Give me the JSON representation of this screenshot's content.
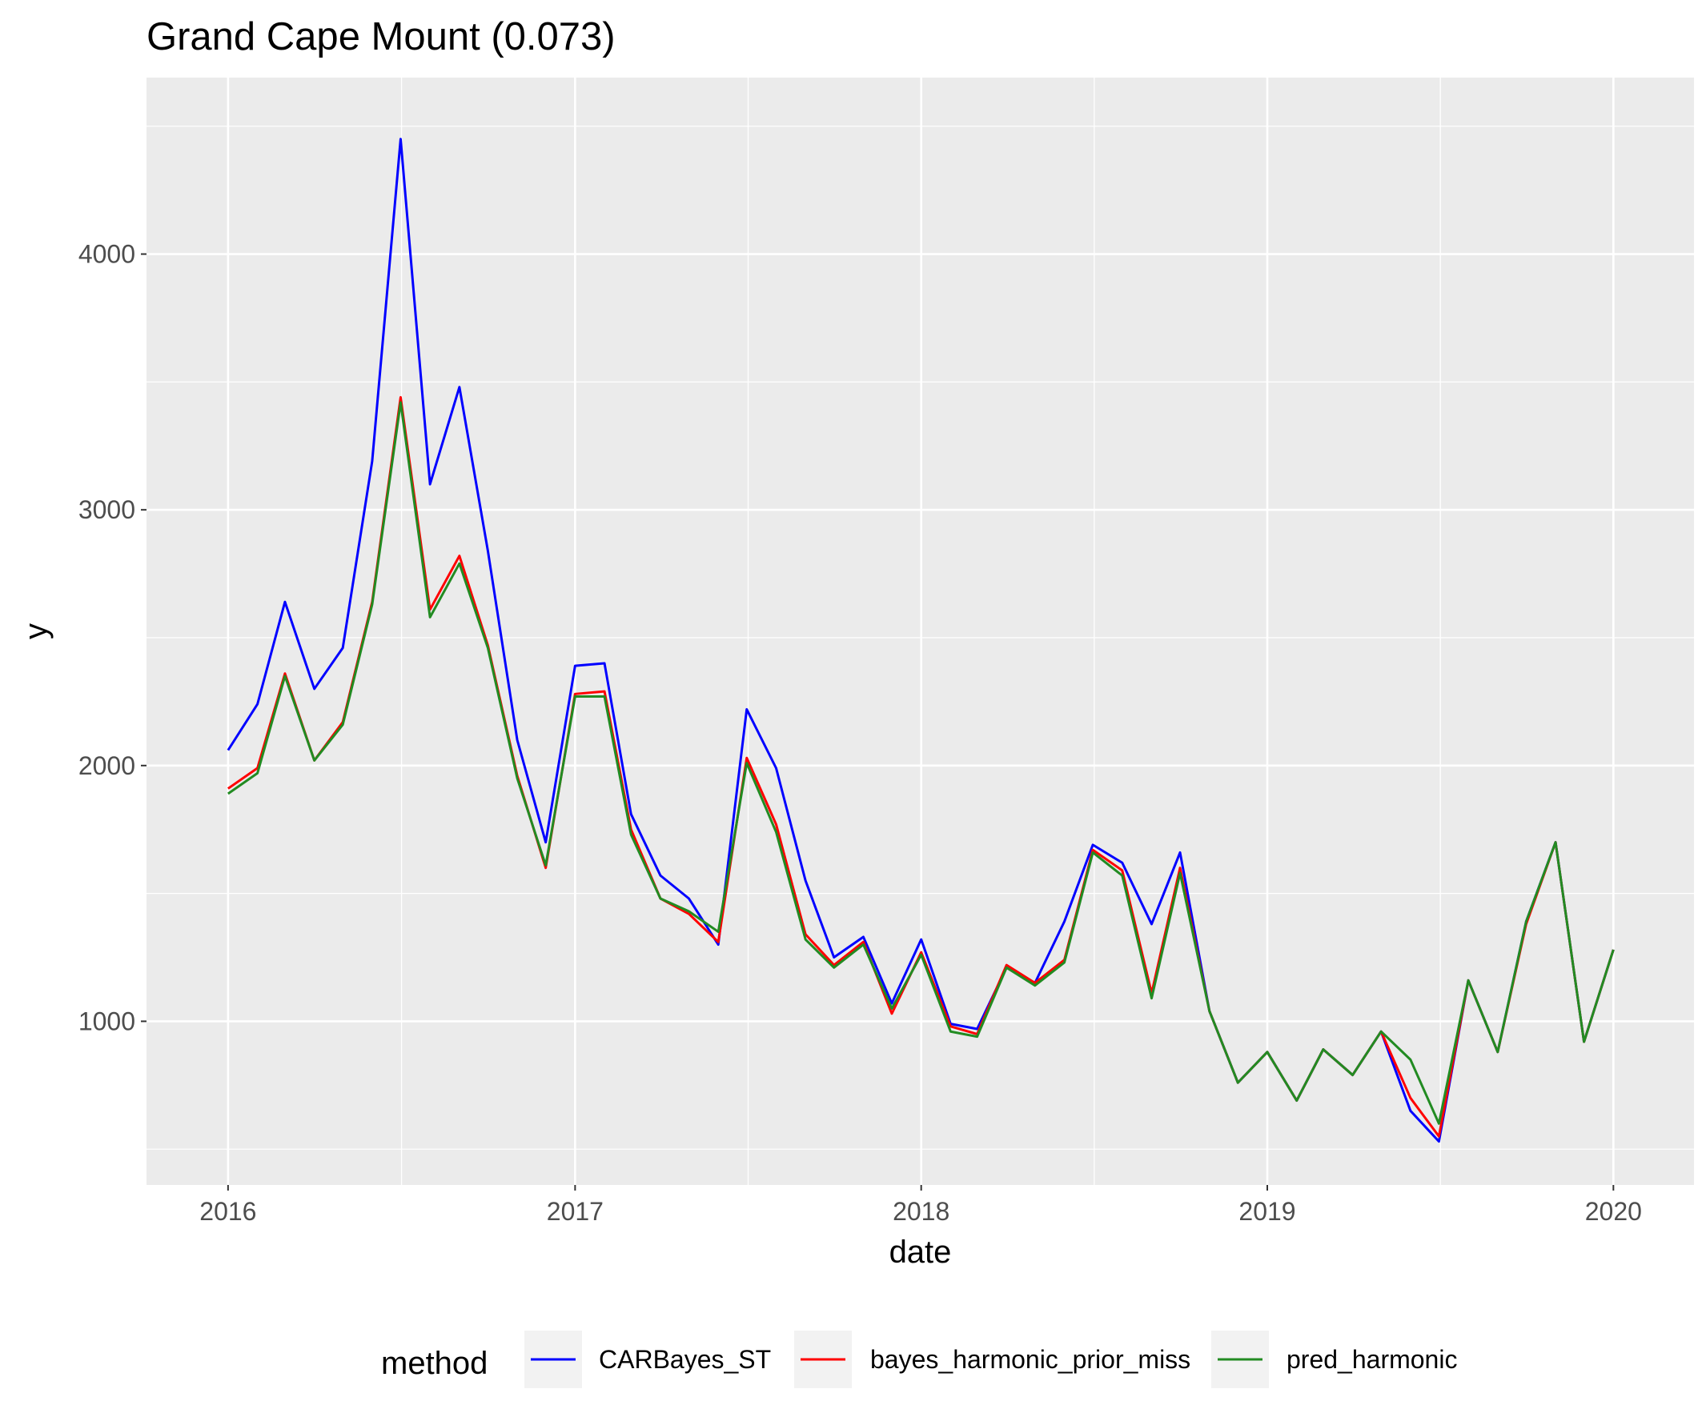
{
  "chart_data": {
    "type": "line",
    "title": "Grand Cape Mount (0.073)",
    "xlabel": "date",
    "ylabel": "y",
    "x_ticks": [
      "2016",
      "2017",
      "2018",
      "2019",
      "2020"
    ],
    "y_ticks": [
      "1000",
      "2000",
      "3000",
      "4000"
    ],
    "xlim": [
      "2015-10-07",
      "2020-03-26"
    ],
    "ylim": [
      360,
      4690
    ],
    "grid": true,
    "legend_title": "method",
    "legend_position": "bottom",
    "x": [
      "2016-01",
      "2016-02",
      "2016-03",
      "2016-04",
      "2016-05",
      "2016-06",
      "2016-07",
      "2016-08",
      "2016-09",
      "2016-10",
      "2016-11",
      "2016-12",
      "2017-01",
      "2017-02",
      "2017-03",
      "2017-04",
      "2017-05",
      "2017-06",
      "2017-07",
      "2017-08",
      "2017-09",
      "2017-10",
      "2017-11",
      "2017-12",
      "2018-01",
      "2018-02",
      "2018-03",
      "2018-04",
      "2018-05",
      "2018-06",
      "2018-07",
      "2018-08",
      "2018-09",
      "2018-10",
      "2018-11",
      "2018-12",
      "2019-01",
      "2019-02",
      "2019-03",
      "2019-04",
      "2019-05",
      "2019-06",
      "2019-07",
      "2019-08",
      "2019-09",
      "2019-10",
      "2019-11",
      "2019-12",
      "2020-01"
    ],
    "series": [
      {
        "name": "CARBayes_ST",
        "color": "#0000ff",
        "values": [
          2060,
          2240,
          2640,
          2300,
          2460,
          3190,
          4450,
          3100,
          3480,
          2840,
          2100,
          1700,
          2390,
          2400,
          1810,
          1570,
          1480,
          1300,
          2220,
          1990,
          1550,
          1250,
          1330,
          1070,
          1320,
          990,
          970,
          1210,
          1150,
          1390,
          1690,
          1620,
          1380,
          1660,
          1040,
          760,
          880,
          690,
          890,
          790,
          960,
          650,
          530,
          1160,
          880,
          1390,
          1700,
          920,
          1280
        ]
      },
      {
        "name": "bayes_harmonic_prior_miss",
        "color": "#ff0000",
        "values": [
          1910,
          1990,
          2360,
          2020,
          2170,
          2640,
          3440,
          2610,
          2820,
          2470,
          1960,
          1600,
          2280,
          2290,
          1750,
          1480,
          1420,
          1310,
          2030,
          1770,
          1340,
          1220,
          1310,
          1030,
          1270,
          980,
          950,
          1220,
          1150,
          1240,
          1670,
          1590,
          1110,
          1600,
          1040,
          760,
          880,
          690,
          890,
          790,
          960,
          700,
          550,
          1160,
          880,
          1380,
          1700,
          920,
          1280
        ]
      },
      {
        "name": "pred_harmonic",
        "color": "#228b22",
        "values": [
          1890,
          1970,
          2350,
          2020,
          2160,
          2630,
          3420,
          2580,
          2790,
          2460,
          1950,
          1610,
          2270,
          2270,
          1730,
          1480,
          1430,
          1350,
          2010,
          1740,
          1320,
          1210,
          1300,
          1050,
          1260,
          960,
          940,
          1210,
          1140,
          1230,
          1660,
          1570,
          1090,
          1580,
          1040,
          760,
          880,
          690,
          890,
          790,
          960,
          850,
          600,
          1160,
          880,
          1390,
          1700,
          920,
          1280
        ]
      }
    ]
  }
}
